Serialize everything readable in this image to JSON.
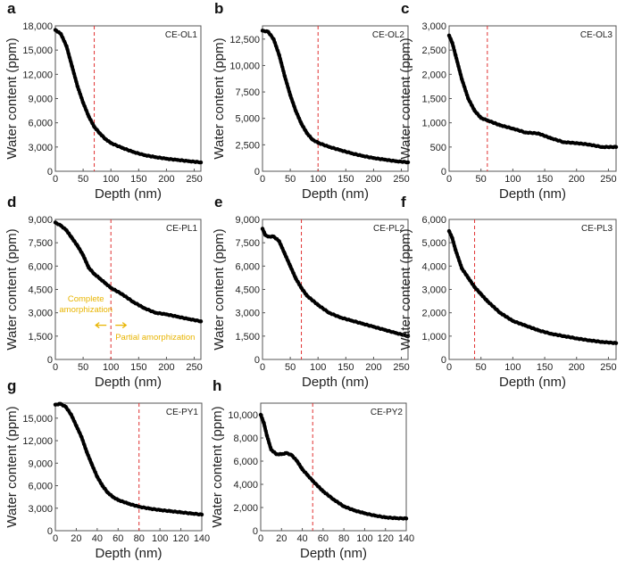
{
  "chart_data": [
    {
      "panel": "a",
      "type": "scatter",
      "label": "CE-OL1",
      "xlabel": "Depth (nm)",
      "ylabel": "Water content (ppm)",
      "xlim": [
        0,
        262
      ],
      "ylim": [
        0,
        18000
      ],
      "xticks": [
        0,
        50,
        100,
        150,
        200,
        250
      ],
      "yticks": [
        0,
        3000,
        6000,
        9000,
        12000,
        15000,
        18000
      ],
      "yticklabels": [
        "0",
        "3,000",
        "6,000",
        "9,000",
        "12,000",
        "15,000",
        "18,000"
      ],
      "dashed_line_x": 70,
      "x": [
        0,
        10,
        20,
        30,
        40,
        50,
        60,
        70,
        80,
        90,
        100,
        120,
        140,
        160,
        180,
        200,
        220,
        240,
        262
      ],
      "y": [
        17500,
        17000,
        15500,
        13000,
        10500,
        8500,
        6800,
        5500,
        4700,
        4000,
        3500,
        2900,
        2400,
        2000,
        1750,
        1550,
        1400,
        1250,
        1100
      ]
    },
    {
      "panel": "b",
      "type": "scatter",
      "label": "CE-OL2",
      "xlabel": "Depth (nm)",
      "ylabel": "Water content (ppm)",
      "xlim": [
        0,
        262
      ],
      "ylim": [
        0,
        13750
      ],
      "xticks": [
        0,
        50,
        100,
        150,
        200,
        250
      ],
      "yticks": [
        0,
        2500,
        5000,
        7500,
        10000,
        12500
      ],
      "yticklabels": [
        "0",
        "2,500",
        "5,000",
        "7,500",
        "10,000",
        "12,500"
      ],
      "dashed_line_x": 100,
      "x": [
        0,
        10,
        20,
        30,
        40,
        50,
        60,
        70,
        80,
        90,
        100,
        120,
        140,
        160,
        180,
        200,
        220,
        240,
        262
      ],
      "y": [
        13300,
        13200,
        12500,
        11000,
        9000,
        7200,
        5700,
        4500,
        3600,
        3000,
        2700,
        2300,
        2000,
        1700,
        1450,
        1250,
        1100,
        950,
        850
      ]
    },
    {
      "panel": "c",
      "type": "scatter",
      "label": "CE-OL3",
      "xlabel": "Depth (nm)",
      "ylabel": "Water content (ppm)",
      "xlim": [
        0,
        262
      ],
      "ylim": [
        0,
        3000
      ],
      "xticks": [
        0,
        50,
        100,
        150,
        200,
        250
      ],
      "yticks": [
        0,
        500,
        1000,
        1500,
        2000,
        2500,
        3000
      ],
      "yticklabels": [
        "0",
        "500",
        "1,000",
        "1,500",
        "2,000",
        "2,500",
        "3,000"
      ],
      "dashed_line_x": 60,
      "x": [
        0,
        5,
        10,
        20,
        30,
        40,
        50,
        60,
        80,
        100,
        120,
        140,
        160,
        180,
        200,
        220,
        240,
        262
      ],
      "y": [
        2800,
        2650,
        2400,
        1900,
        1500,
        1250,
        1100,
        1050,
        950,
        880,
        800,
        780,
        680,
        600,
        580,
        550,
        500,
        500
      ]
    },
    {
      "panel": "d",
      "type": "scatter",
      "label": "CE-PL1",
      "xlabel": "Depth (nm)",
      "ylabel": "Water content (ppm)",
      "xlim": [
        0,
        262
      ],
      "ylim": [
        0,
        9000
      ],
      "xticks": [
        0,
        50,
        100,
        150,
        200,
        250
      ],
      "yticks": [
        0,
        1500,
        3000,
        4500,
        6000,
        7500,
        9000
      ],
      "yticklabels": [
        "0",
        "1,500",
        "3,000",
        "4,500",
        "6,000",
        "7,500",
        "9,000"
      ],
      "dashed_line_x": 100,
      "annotations": {
        "left": "Complete amorphization",
        "left_line1": "Complete",
        "left_line2": "amorphization",
        "right": "Partial amorphization",
        "color": "#e8b400"
      },
      "x": [
        0,
        10,
        20,
        30,
        40,
        50,
        60,
        70,
        80,
        90,
        100,
        120,
        140,
        160,
        180,
        200,
        220,
        240,
        262
      ],
      "y": [
        8800,
        8600,
        8300,
        7800,
        7300,
        6700,
        5900,
        5500,
        5200,
        4900,
        4600,
        4200,
        3700,
        3300,
        3000,
        2900,
        2750,
        2600,
        2450
      ]
    },
    {
      "panel": "e",
      "type": "scatter",
      "label": "CE-PL2",
      "xlabel": "Depth (nm)",
      "ylabel": "Water content (ppm)",
      "xlim": [
        0,
        262
      ],
      "ylim": [
        0,
        9000
      ],
      "xticks": [
        0,
        50,
        100,
        150,
        200,
        250
      ],
      "yticks": [
        0,
        1500,
        3000,
        4500,
        6000,
        7500,
        9000
      ],
      "yticklabels": [
        "0",
        "1,500",
        "3,000",
        "4,500",
        "6,000",
        "7,500",
        "9,000"
      ],
      "dashed_line_x": 70,
      "x": [
        0,
        5,
        10,
        20,
        30,
        40,
        50,
        60,
        70,
        80,
        100,
        120,
        140,
        160,
        180,
        200,
        220,
        240,
        262
      ],
      "y": [
        8400,
        8000,
        7900,
        7900,
        7600,
        6800,
        6000,
        5200,
        4600,
        4100,
        3500,
        3000,
        2700,
        2500,
        2300,
        2100,
        1900,
        1700,
        1500
      ]
    },
    {
      "panel": "f",
      "type": "scatter",
      "label": "CE-PL3",
      "xlabel": "Depth (nm)",
      "ylabel": "Water content (ppm)",
      "xlim": [
        0,
        262
      ],
      "ylim": [
        0,
        6000
      ],
      "xticks": [
        0,
        50,
        100,
        150,
        200,
        250
      ],
      "yticks": [
        0,
        1000,
        2000,
        3000,
        4000,
        5000,
        6000
      ],
      "yticklabels": [
        "0",
        "1,000",
        "2,000",
        "3,000",
        "4,000",
        "5,000",
        "6,000"
      ],
      "dashed_line_x": 40,
      "x": [
        0,
        5,
        10,
        20,
        30,
        40,
        50,
        60,
        80,
        100,
        120,
        140,
        160,
        180,
        200,
        220,
        240,
        262
      ],
      "y": [
        5500,
        5200,
        4700,
        3900,
        3500,
        3100,
        2800,
        2500,
        2000,
        1650,
        1450,
        1250,
        1100,
        1000,
        900,
        820,
        750,
        700
      ]
    },
    {
      "panel": "g",
      "type": "scatter",
      "label": "CE-PY1",
      "xlabel": "Depth (nm)",
      "ylabel": "Water content (ppm)",
      "xlim": [
        0,
        140
      ],
      "ylim": [
        0,
        17000
      ],
      "xticks": [
        0,
        20,
        40,
        60,
        80,
        100,
        120,
        140
      ],
      "yticks": [
        0,
        3000,
        6000,
        9000,
        12000,
        15000
      ],
      "yticklabels": [
        "0",
        "3,000",
        "6,000",
        "9,000",
        "12,000",
        "15,000"
      ],
      "dashed_line_x": 80,
      "x": [
        0,
        5,
        10,
        15,
        20,
        25,
        30,
        35,
        40,
        45,
        50,
        55,
        60,
        70,
        80,
        90,
        100,
        110,
        120,
        130,
        140
      ],
      "y": [
        16800,
        16900,
        16500,
        15500,
        14000,
        12500,
        10500,
        8800,
        7200,
        6000,
        5100,
        4500,
        4100,
        3600,
        3200,
        2950,
        2750,
        2600,
        2450,
        2300,
        2150
      ]
    },
    {
      "panel": "h",
      "type": "scatter",
      "label": "CE-PY2",
      "xlabel": "Depth (nm)",
      "ylabel": "Water content (ppm)",
      "xlim": [
        0,
        140
      ],
      "ylim": [
        0,
        11000
      ],
      "xticks": [
        0,
        20,
        40,
        60,
        80,
        100,
        120,
        140
      ],
      "yticks": [
        0,
        2000,
        4000,
        6000,
        8000,
        10000
      ],
      "yticklabels": [
        "0",
        "2,000",
        "4,000",
        "6,000",
        "8,000",
        "10,000"
      ],
      "dashed_line_x": 50,
      "x": [
        0,
        3,
        6,
        10,
        15,
        20,
        25,
        30,
        35,
        40,
        45,
        50,
        60,
        70,
        80,
        90,
        100,
        110,
        120,
        130,
        140
      ],
      "y": [
        10000,
        9300,
        8200,
        7000,
        6600,
        6600,
        6700,
        6500,
        6000,
        5300,
        4800,
        4300,
        3400,
        2700,
        2100,
        1750,
        1500,
        1300,
        1150,
        1080,
        1050
      ]
    }
  ],
  "colors": {
    "points": "#000000",
    "dashed_line": "#e03030",
    "axes": "#555555",
    "annotation": "#e8b400"
  }
}
